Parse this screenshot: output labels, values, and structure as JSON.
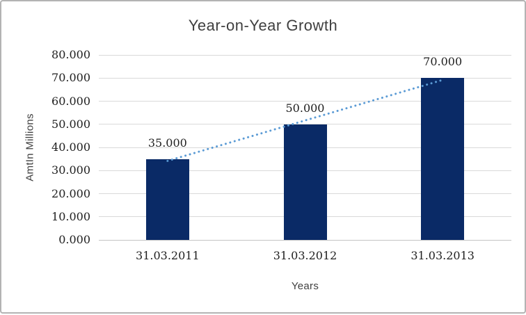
{
  "chart_data": {
    "type": "bar",
    "title": "Year-on-Year Growth",
    "xlabel": "Years",
    "ylabel": "AmtIn Millions",
    "categories": [
      "31.03.2011",
      "31.03.2012",
      "31.03.2013"
    ],
    "values": [
      35000,
      50000,
      70000
    ],
    "value_labels": [
      "35.000",
      "50.000",
      "70.000"
    ],
    "y_ticks": [
      0,
      10000,
      20000,
      30000,
      40000,
      50000,
      60000,
      70000,
      80000
    ],
    "y_tick_labels": [
      "0.000",
      "10.000",
      "20.000",
      "30.000",
      "40.000",
      "50.000",
      "60.000",
      "70.000",
      "80.000"
    ],
    "ylim": [
      0,
      80000
    ],
    "grid": true,
    "legend": false,
    "trendline": {
      "type": "linear",
      "style": "dotted"
    },
    "colors": {
      "bar": "#0a2a66",
      "trendline": "#5b9bd5",
      "gridline": "#d9d9d9",
      "title_text": "#3f3f3f",
      "tick_text": "#1f1f1f",
      "background": "#ffffff",
      "frame_border": "#b3b3b3"
    }
  }
}
